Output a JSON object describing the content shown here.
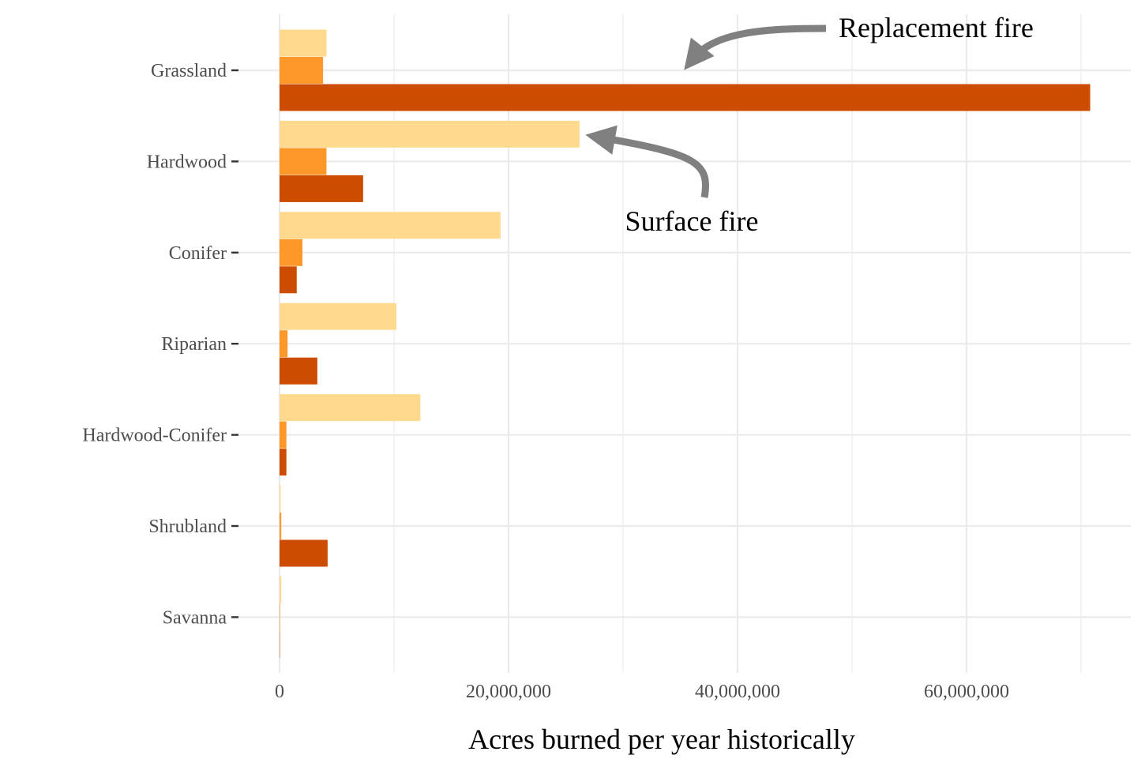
{
  "chart_data": {
    "type": "bar",
    "orientation": "horizontal",
    "categories": [
      "Grassland",
      "Hardwood",
      "Conifer",
      "Riparian",
      "Hardwood-Conifer",
      "Shrubland",
      "Savanna"
    ],
    "series": [
      {
        "values": [
          4100000,
          26200000,
          19300000,
          10200000,
          12300000,
          100000,
          150000
        ],
        "color": "#fed98e"
      },
      {
        "values": [
          3800000,
          4100000,
          2000000,
          700000,
          600000,
          150000,
          50000
        ],
        "color": "#fe9929"
      },
      {
        "values": [
          70800000,
          7300000,
          1500000,
          3300000,
          600000,
          4200000,
          30000
        ],
        "color": "#cc4c02"
      }
    ],
    "x_ticks": [
      0,
      20000000,
      40000000,
      60000000
    ],
    "x_tick_labels": [
      "0",
      "20,000,000",
      "40,000,000",
      "60,000,000"
    ],
    "xlim": [
      0,
      74000000
    ],
    "xlabel": "Acres burned per year historically",
    "ylabel": "",
    "title": "",
    "grid": true,
    "legend": "none",
    "annotations": [
      {
        "text": "Replacement fire",
        "points_to_series": 2,
        "category": "Grassland",
        "color": "#808080"
      },
      {
        "text": "Surface fire",
        "points_to_series": 0,
        "category": "Hardwood",
        "color": "#808080"
      }
    ]
  }
}
